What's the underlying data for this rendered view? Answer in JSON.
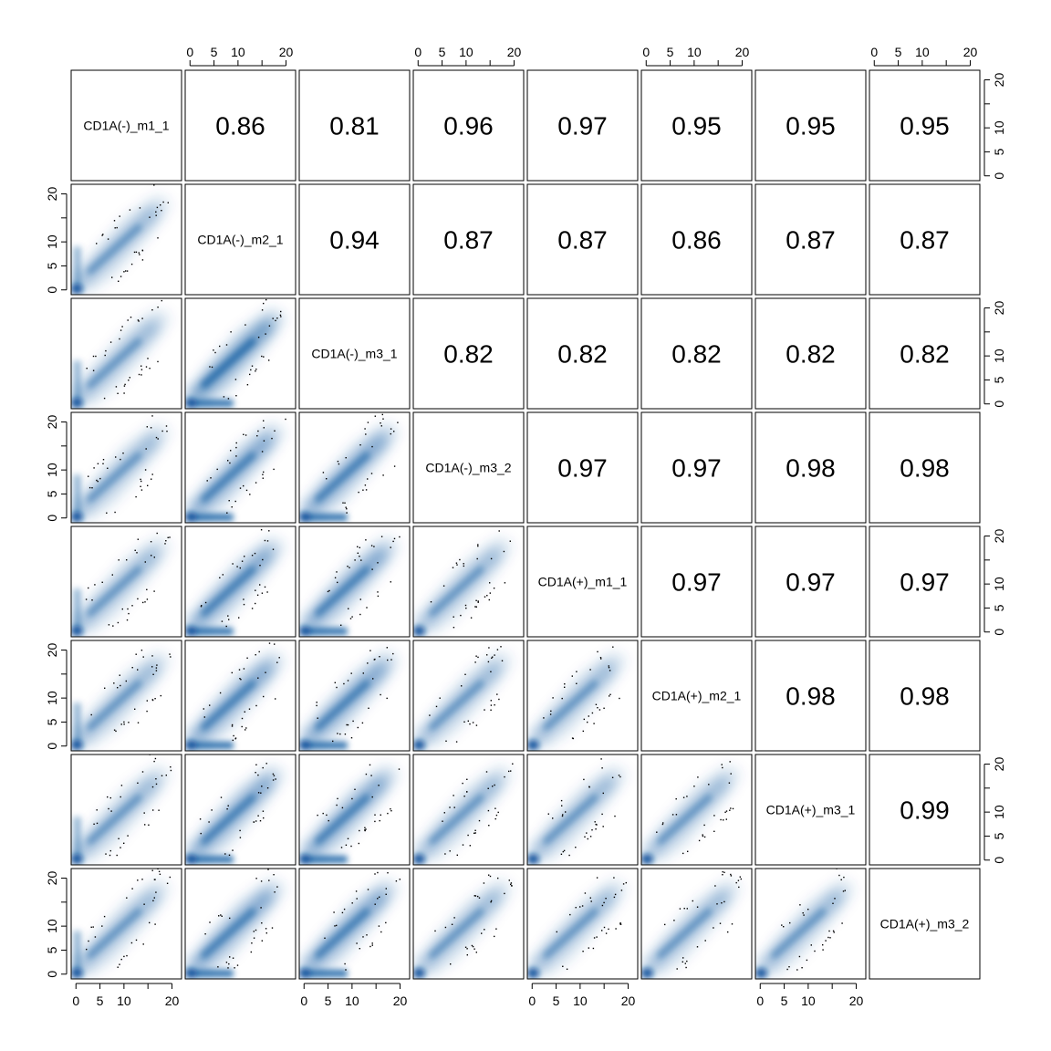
{
  "chart_data": {
    "type": "scatter",
    "variables": [
      "CD1A(-)_m1_1",
      "CD1A(-)_m2_1",
      "CD1A(-)_m3_1",
      "CD1A(-)_m3_2",
      "CD1A(+)_m1_1",
      "CD1A(+)_m2_1",
      "CD1A(+)_m3_1",
      "CD1A(+)_m3_2"
    ],
    "correlations": [
      [
        "",
        "0.86",
        "0.81",
        "0.96",
        "0.97",
        "0.95",
        "0.95",
        "0.95"
      ],
      [
        "",
        "",
        "0.94",
        "0.87",
        "0.87",
        "0.86",
        "0.87",
        "0.87"
      ],
      [
        "",
        "",
        "",
        "0.82",
        "0.82",
        "0.82",
        "0.82",
        "0.82"
      ],
      [
        "",
        "",
        "",
        "",
        "0.97",
        "0.97",
        "0.98",
        "0.98"
      ],
      [
        "",
        "",
        "",
        "",
        "",
        "0.97",
        "0.97",
        "0.97"
      ],
      [
        "",
        "",
        "",
        "",
        "",
        "",
        "0.98",
        "0.98"
      ],
      [
        "",
        "",
        "",
        "",
        "",
        "",
        "",
        "0.99"
      ],
      [
        "",
        "",
        "",
        "",
        "",
        "",
        "",
        ""
      ]
    ],
    "axis_range": [
      -1,
      22
    ],
    "ticks": [
      0,
      5,
      10,
      15,
      20
    ],
    "tick_labels": [
      "0",
      "5",
      "10",
      "",
      "20"
    ],
    "lower_panels": "smoothed density scatter",
    "upper_panels": "correlation coefficient",
    "colors": {
      "density_dark": "#08519c",
      "density_light": "#deebf7",
      "outlier": "#000000",
      "frame": "#000000"
    }
  }
}
